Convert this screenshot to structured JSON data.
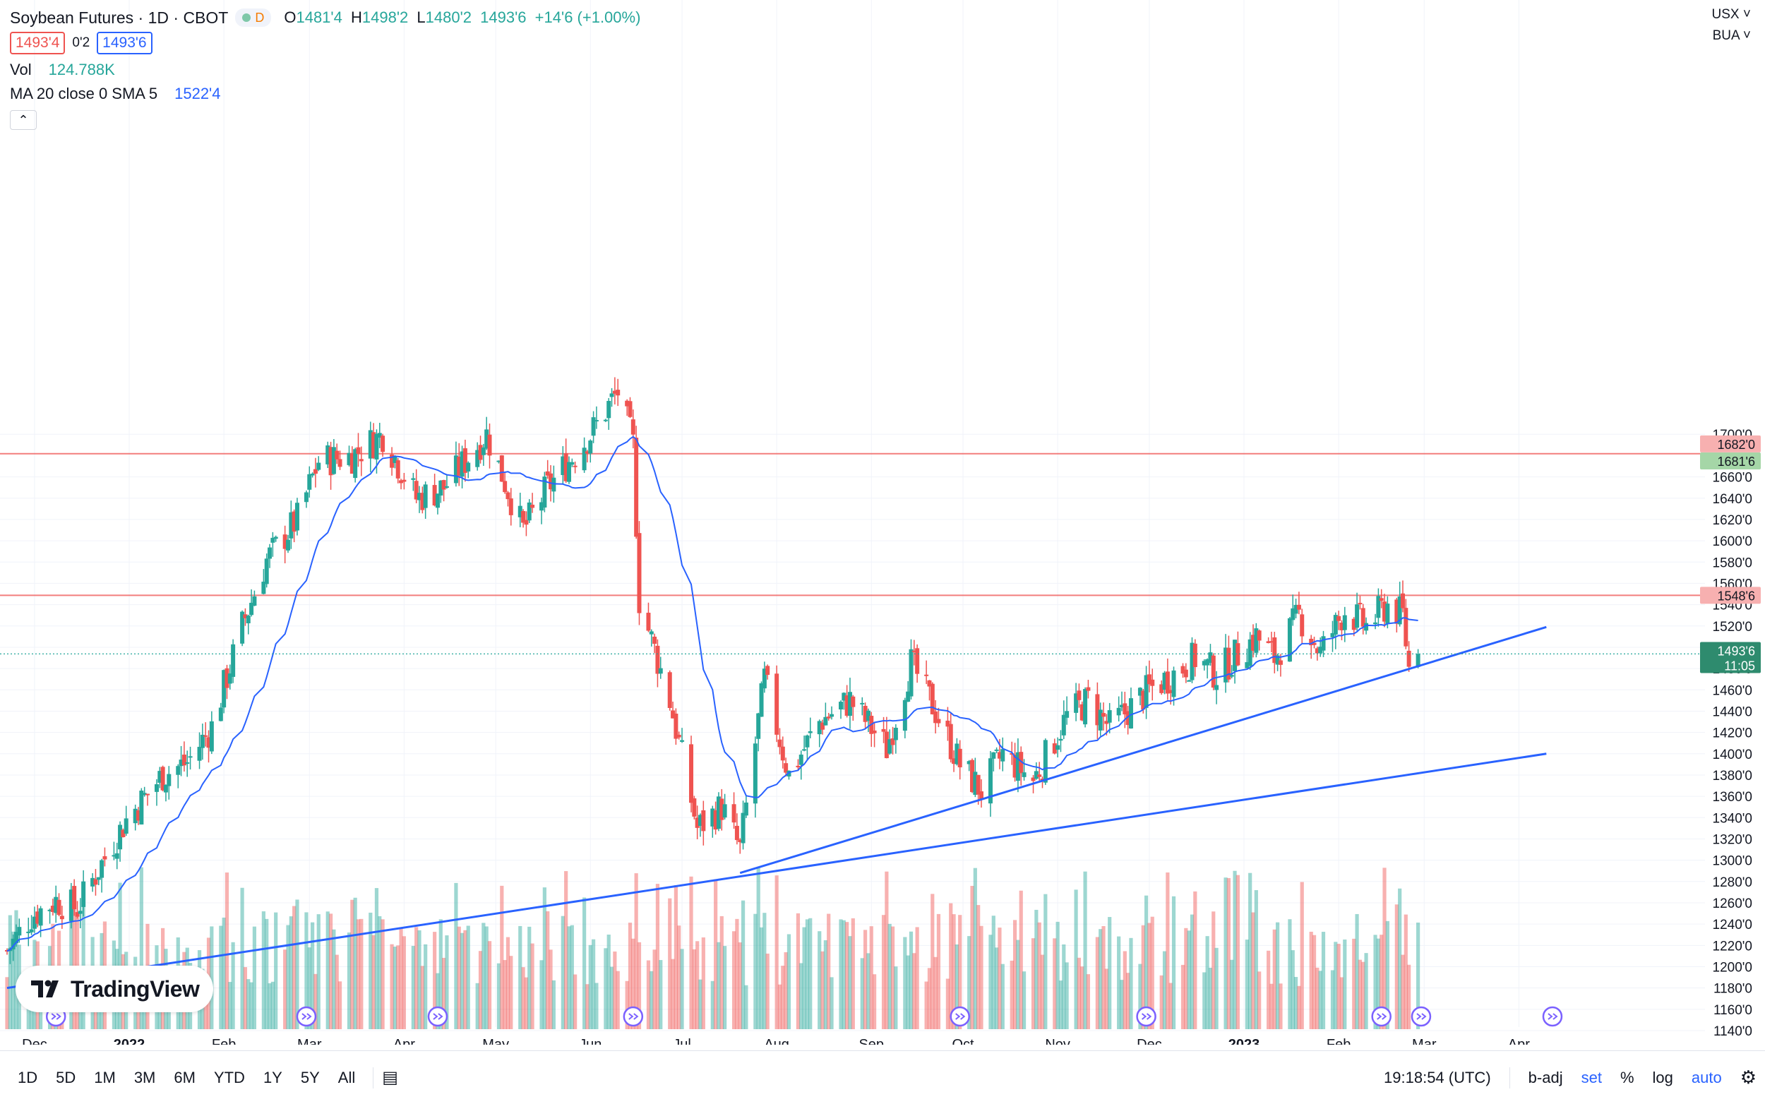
{
  "symbol": {
    "title": "Soybean Futures · 1D · CBOT",
    "status_badge": "D",
    "open_label": "O",
    "open": "1481'4",
    "high_label": "H",
    "high": "1498'2",
    "low_label": "L",
    "low": "1480'2",
    "close": "1493'6",
    "change": "+14'6 (+1.00%)",
    "bid": "1493'4",
    "spread": "0'2",
    "ask": "1493'6"
  },
  "indicators": {
    "vol_label": "Vol",
    "vol_value": "124.788K",
    "ma_label": "MA 20 close 0 SMA 5",
    "ma_value": "1522'4"
  },
  "scale": {
    "currency": "USX",
    "unit": "BUA"
  },
  "price_tags": {
    "h1_high": "1682'0",
    "h1_low": "1681'6",
    "h2": "1548'6",
    "last": "1493'6",
    "countdown": "11:05"
  },
  "toolbar": {
    "timeframes": [
      "1D",
      "5D",
      "1M",
      "3M",
      "6M",
      "YTD",
      "1Y",
      "5Y",
      "All"
    ],
    "clock": "19:18:54 (UTC)",
    "b_adj": "b-adj",
    "set": "set",
    "percent": "%",
    "log": "log",
    "auto": "auto"
  },
  "brand": "TradingView",
  "colors": {
    "up": "#26a69a",
    "down": "#ef5350",
    "ma": "#2962ff",
    "trend": "#2962ff",
    "hline": "#ef5350"
  },
  "chart_data": {
    "type": "candlestick",
    "title": "Soybean Futures · 1D · CBOT",
    "ylim": [
      1135,
      1725
    ],
    "y_ticks": [
      "1140'0",
      "1160'0",
      "1180'0",
      "1200'0",
      "1220'0",
      "1240'0",
      "1260'0",
      "1280'0",
      "1300'0",
      "1320'0",
      "1340'0",
      "1360'0",
      "1380'0",
      "1400'0",
      "1420'0",
      "1440'0",
      "1460'0",
      "1480'0",
      "1500'0",
      "1520'0",
      "1540'0",
      "1560'0",
      "1580'0",
      "1600'0",
      "1620'0",
      "1640'0",
      "1660'0",
      "1700'0"
    ],
    "x_ticks": [
      "Dec",
      "2022",
      "Feb",
      "Mar",
      "Apr",
      "May",
      "Jun",
      "Jul",
      "Aug",
      "Sep",
      "Oct",
      "Nov",
      "Dec",
      "2023",
      "Feb",
      "Mar",
      "Apr"
    ],
    "price_path_anchors": [
      {
        "date": "2021-11-22",
        "close": 1215
      },
      {
        "date": "2021-11-30",
        "close": 1248
      },
      {
        "date": "2021-12-08",
        "close": 1262
      },
      {
        "date": "2021-12-15",
        "close": 1255
      },
      {
        "date": "2021-12-22",
        "close": 1292
      },
      {
        "date": "2021-12-31",
        "close": 1338
      },
      {
        "date": "2022-01-12",
        "close": 1380
      },
      {
        "date": "2022-01-20",
        "close": 1392
      },
      {
        "date": "2022-01-28",
        "close": 1425
      },
      {
        "date": "2022-02-07",
        "close": 1520
      },
      {
        "date": "2022-02-15",
        "close": 1582
      },
      {
        "date": "2022-02-25",
        "close": 1620
      },
      {
        "date": "2022-03-04",
        "close": 1675
      },
      {
        "date": "2022-03-15",
        "close": 1680
      },
      {
        "date": "2022-03-25",
        "close": 1700
      },
      {
        "date": "2022-04-05",
        "close": 1640
      },
      {
        "date": "2022-04-14",
        "close": 1650
      },
      {
        "date": "2022-04-28",
        "close": 1700
      },
      {
        "date": "2022-05-10",
        "close": 1610
      },
      {
        "date": "2022-05-18",
        "close": 1650
      },
      {
        "date": "2022-06-01",
        "close": 1700
      },
      {
        "date": "2022-06-10",
        "close": 1740
      },
      {
        "date": "2022-06-15",
        "close": 1690
      },
      {
        "date": "2022-06-17",
        "close": 1545
      },
      {
        "date": "2022-06-27",
        "close": 1450
      },
      {
        "date": "2022-07-06",
        "close": 1330
      },
      {
        "date": "2022-07-14",
        "close": 1350
      },
      {
        "date": "2022-07-20",
        "close": 1310
      },
      {
        "date": "2022-07-28",
        "close": 1470
      },
      {
        "date": "2022-08-05",
        "close": 1380
      },
      {
        "date": "2022-08-15",
        "close": 1430
      },
      {
        "date": "2022-08-25",
        "close": 1450
      },
      {
        "date": "2022-09-06",
        "close": 1405
      },
      {
        "date": "2022-09-14",
        "close": 1485
      },
      {
        "date": "2022-09-22",
        "close": 1440
      },
      {
        "date": "2022-09-30",
        "close": 1390
      },
      {
        "date": "2022-10-07",
        "close": 1365
      },
      {
        "date": "2022-10-14",
        "close": 1400
      },
      {
        "date": "2022-10-24",
        "close": 1375
      },
      {
        "date": "2022-11-04",
        "close": 1435
      },
      {
        "date": "2022-11-11",
        "close": 1450
      },
      {
        "date": "2022-11-18",
        "close": 1425
      },
      {
        "date": "2022-12-01",
        "close": 1460
      },
      {
        "date": "2022-12-09",
        "close": 1475
      },
      {
        "date": "2022-12-16",
        "close": 1490
      },
      {
        "date": "2022-12-23",
        "close": 1475
      },
      {
        "date": "2023-01-05",
        "close": 1510
      },
      {
        "date": "2023-01-11",
        "close": 1490
      },
      {
        "date": "2023-01-19",
        "close": 1530
      },
      {
        "date": "2023-01-26",
        "close": 1495
      },
      {
        "date": "2023-02-03",
        "close": 1535
      },
      {
        "date": "2023-02-10",
        "close": 1520
      },
      {
        "date": "2023-02-17",
        "close": 1540
      },
      {
        "date": "2023-02-22",
        "close": 1530
      },
      {
        "date": "2023-02-24",
        "close": 1480
      },
      {
        "date": "2023-02-27",
        "close": 1493.75
      }
    ],
    "horizontal_lines": [
      1681.75,
      1548.75
    ],
    "trend_lines": [
      {
        "from": {
          "date": "2021-11-22",
          "price": 1180
        },
        "to": {
          "date": "2023-04-10",
          "price": 1400
        }
      },
      {
        "from": {
          "date": "2022-07-20",
          "price": 1288
        },
        "to": {
          "date": "2023-04-10",
          "price": 1519
        }
      }
    ]
  }
}
